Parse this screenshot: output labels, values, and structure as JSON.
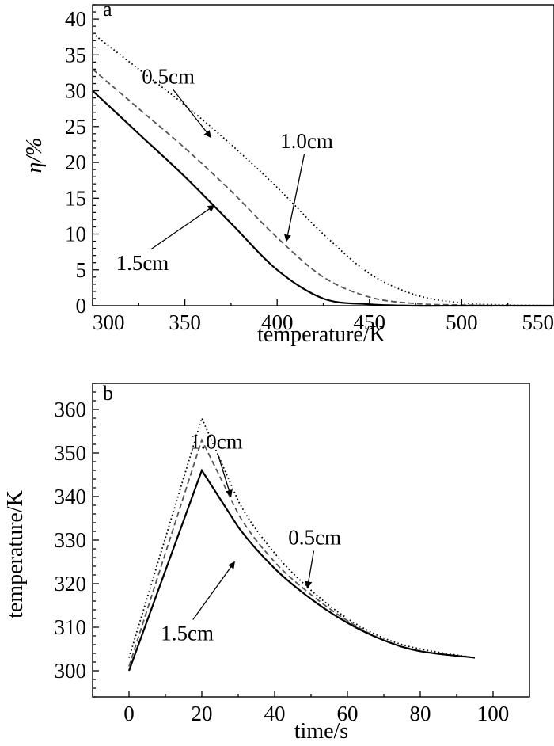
{
  "chart_data": [
    {
      "type": "line",
      "panel_label": "a",
      "xlabel": "temperature/K",
      "ylabel": "η/%",
      "xlim": [
        300,
        550
      ],
      "ylim": [
        0,
        42
      ],
      "xticks": [
        300,
        350,
        400,
        450,
        500,
        550
      ],
      "yticks": [
        0,
        5,
        10,
        15,
        20,
        25,
        30,
        35,
        40
      ],
      "grid": false,
      "series": [
        {
          "name": "0.5cm",
          "style": "dotted",
          "color": "#000000",
          "x": [
            300,
            325,
            350,
            375,
            400,
            425,
            450,
            475,
            500,
            525,
            550
          ],
          "y": [
            38.0,
            33.0,
            28.0,
            22.5,
            16.5,
            10.0,
            4.5,
            1.5,
            0.4,
            0.1,
            0.0
          ]
        },
        {
          "name": "1.0cm",
          "style": "dashed",
          "color": "#555555",
          "x": [
            300,
            325,
            350,
            375,
            400,
            425,
            450,
            475,
            500,
            525,
            550
          ],
          "y": [
            33.0,
            27.5,
            22.0,
            16.0,
            9.5,
            4.0,
            1.2,
            0.3,
            0.1,
            0.0,
            0.0
          ]
        },
        {
          "name": "1.5cm",
          "style": "solid",
          "color": "#000000",
          "x": [
            300,
            325,
            350,
            375,
            400,
            425,
            450,
            475,
            500,
            525,
            550
          ],
          "y": [
            30.0,
            24.0,
            18.0,
            11.5,
            5.0,
            1.0,
            0.2,
            0.0,
            0.0,
            0.0,
            0.0
          ]
        }
      ],
      "annotations": [
        {
          "text": "0.5cm",
          "series": "0.5cm",
          "text_at": [
            341,
            31
          ],
          "arrow_to": [
            364,
            23.5
          ]
        },
        {
          "text": "1.0cm",
          "series": "1.0cm",
          "text_at": [
            416,
            22
          ],
          "arrow_to": [
            405,
            9
          ]
        },
        {
          "text": "1.5cm",
          "series": "1.5cm",
          "text_at": [
            327,
            5
          ],
          "arrow_to": [
            366,
            14
          ]
        }
      ]
    },
    {
      "type": "line",
      "panel_label": "b",
      "xlabel": "time/s",
      "ylabel": "temperature/K",
      "xlim": [
        -10,
        110
      ],
      "ylim": [
        294,
        366
      ],
      "xticks": [
        0,
        20,
        40,
        60,
        80,
        100
      ],
      "yticks": [
        300,
        310,
        320,
        330,
        340,
        350,
        360
      ],
      "grid": false,
      "series": [
        {
          "name": "0.5cm",
          "style": "dotted",
          "color": "#000000",
          "x": [
            0,
            20,
            30,
            40,
            50,
            60,
            70,
            80,
            95
          ],
          "y": [
            303,
            358,
            339,
            327,
            318.5,
            312,
            307.5,
            305,
            303
          ]
        },
        {
          "name": "1.0cm",
          "style": "dashed",
          "color": "#555555",
          "x": [
            0,
            20,
            30,
            40,
            50,
            60,
            70,
            80,
            95
          ],
          "y": [
            301,
            353,
            336,
            325,
            317.5,
            311.5,
            307,
            304.5,
            303
          ]
        },
        {
          "name": "1.5cm",
          "style": "solid",
          "color": "#000000",
          "x": [
            0,
            20,
            30,
            40,
            50,
            60,
            70,
            80,
            95
          ],
          "y": [
            300,
            346,
            333,
            323.5,
            316.5,
            311,
            307,
            304.5,
            303
          ]
        }
      ],
      "annotations": [
        {
          "text": "1.0cm",
          "series": "1.0cm",
          "text_at": [
            24,
            351
          ],
          "arrow_to": [
            28,
            340
          ]
        },
        {
          "text": "0.5cm",
          "series": "0.5cm",
          "text_at": [
            51,
            329
          ],
          "arrow_to": [
            49,
            319
          ]
        },
        {
          "text": "1.5cm",
          "series": "1.5cm",
          "text_at": [
            16,
            307
          ],
          "arrow_to": [
            29,
            325
          ]
        }
      ]
    }
  ]
}
